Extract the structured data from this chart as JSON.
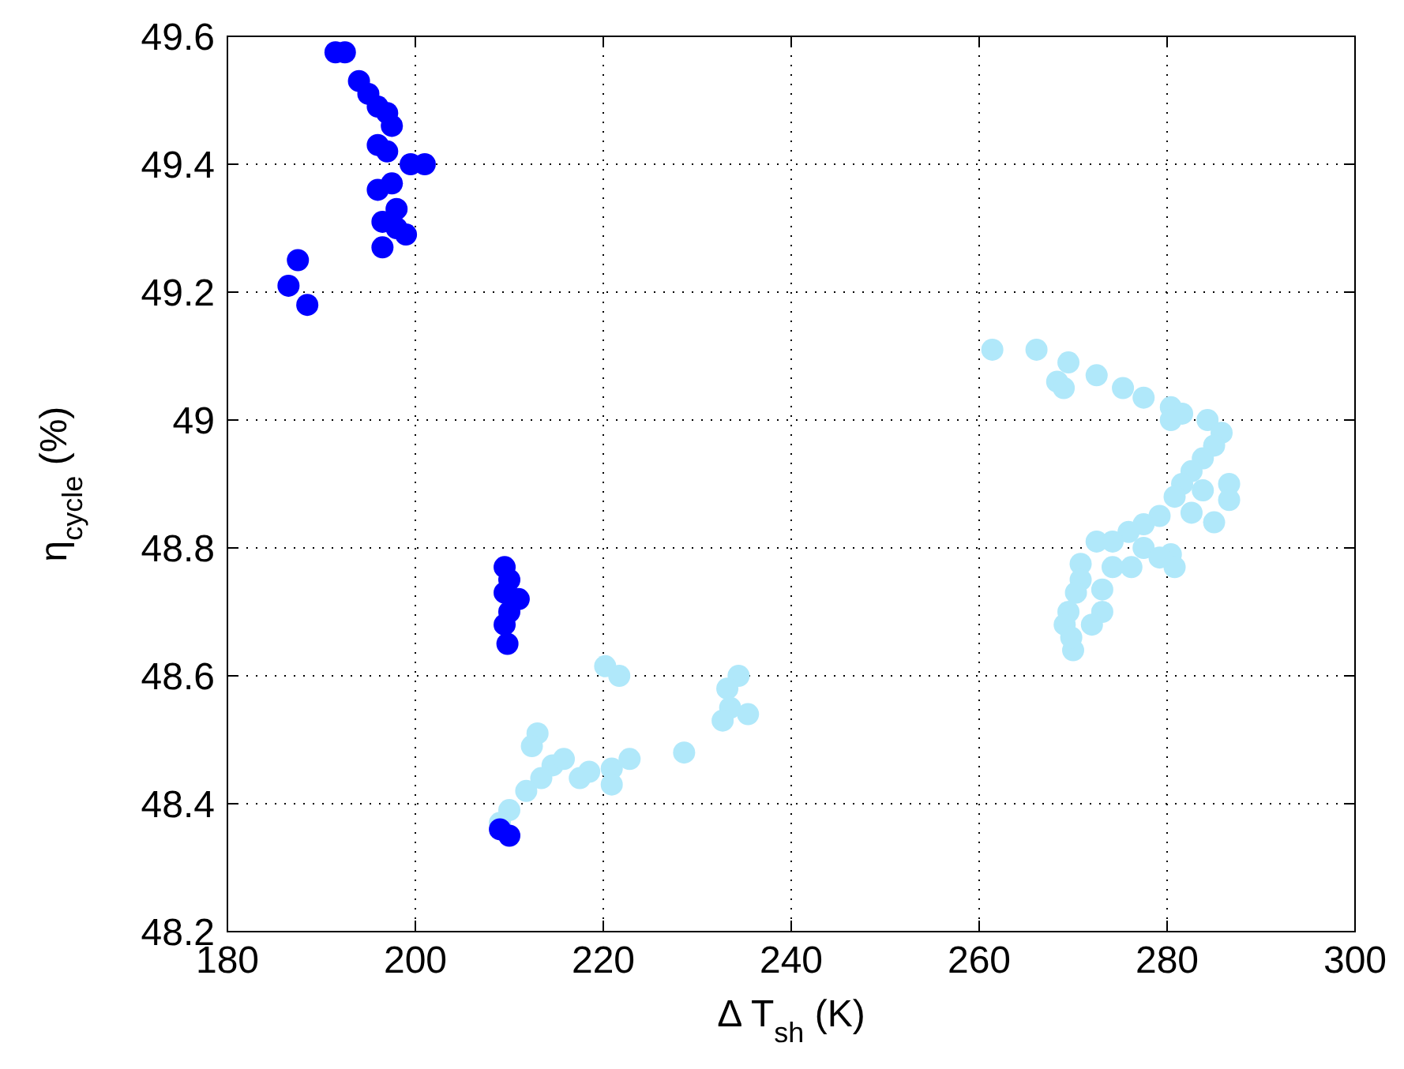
{
  "chart_data": {
    "type": "scatter",
    "xlabel": "Δ T$_{sh}$ (K)",
    "ylabel": "η$_{cycle}$ (%)",
    "xlim": [
      180,
      300
    ],
    "ylim": [
      48.2,
      49.6
    ],
    "xticks": [
      180,
      200,
      220,
      240,
      260,
      280,
      300
    ],
    "yticks": [
      48.2,
      48.4,
      48.6,
      48.8,
      49,
      49.2,
      49.4,
      49.6
    ],
    "grid": true,
    "marker": "circle",
    "series": [
      {
        "color": "#b0e8fa",
        "x": [
          220.2,
          221.7,
          213,
          212.4,
          214.6,
          213.4,
          211.8,
          210,
          209,
          215.8,
          217.5,
          218.5,
          220.9,
          222.8,
          220.9,
          228.6,
          234.4,
          233.2,
          233.5,
          235.4,
          232.7,
          261.4,
          266.1,
          269.5,
          268.3,
          269,
          272.5,
          275.3,
          277.5,
          280.4,
          281.6,
          280.4,
          284.3,
          285.8,
          285,
          283.8,
          282.6,
          281.6,
          280.8,
          286.6,
          286.6,
          285,
          282.6,
          283.8,
          279.2,
          277.5,
          275.9,
          272.5,
          274.2,
          277.5,
          280.4,
          280.8,
          279.2,
          276.2,
          270.8,
          274.2,
          270.8,
          273.1,
          270.3,
          273.1,
          269.5,
          272,
          269.1,
          270,
          269.8
        ],
        "values": [
          48.615,
          48.6,
          48.51,
          48.49,
          48.46,
          48.44,
          48.42,
          48.39,
          48.37,
          48.47,
          48.44,
          48.45,
          48.455,
          48.47,
          48.43,
          48.48,
          48.6,
          48.58,
          48.55,
          48.54,
          48.53,
          49.11,
          49.11,
          49.09,
          49.06,
          49.05,
          49.07,
          49.05,
          49.035,
          49.02,
          49.01,
          49,
          49,
          48.98,
          48.96,
          48.94,
          48.92,
          48.9,
          48.88,
          48.9,
          48.875,
          48.84,
          48.855,
          48.89,
          48.85,
          48.837,
          48.825,
          48.81,
          48.81,
          48.8,
          48.79,
          48.77,
          48.785,
          48.77,
          48.775,
          48.77,
          48.75,
          48.735,
          48.73,
          48.7,
          48.7,
          48.68,
          48.68,
          48.64,
          48.66
        ]
      },
      {
        "color": "#0000ff",
        "x": [
          191.5,
          192.5,
          194,
          195,
          196,
          197,
          197.5,
          196,
          197,
          199.5,
          201,
          196,
          197.5,
          198,
          196.5,
          199,
          198,
          196.5,
          187.5,
          186.5,
          188.5,
          209.5,
          210,
          209.5,
          211,
          210,
          209.5,
          209.8,
          209,
          210
        ],
        "values": [
          49.575,
          49.575,
          49.53,
          49.51,
          49.49,
          49.48,
          49.46,
          49.43,
          49.42,
          49.4,
          49.4,
          49.36,
          49.37,
          49.33,
          49.31,
          49.29,
          49.3,
          49.27,
          49.25,
          49.21,
          49.18,
          48.77,
          48.75,
          48.73,
          48.72,
          48.7,
          48.68,
          48.65,
          48.36,
          48.35
        ]
      }
    ]
  }
}
